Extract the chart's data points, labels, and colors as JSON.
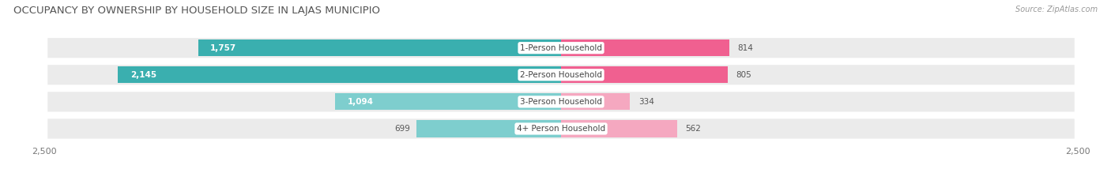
{
  "title": "OCCUPANCY BY OWNERSHIP BY HOUSEHOLD SIZE IN LAJAS MUNICIPIO",
  "source": "Source: ZipAtlas.com",
  "categories": [
    "1-Person Household",
    "2-Person Household",
    "3-Person Household",
    "4+ Person Household"
  ],
  "owner_values": [
    1757,
    2145,
    1094,
    699
  ],
  "renter_values": [
    814,
    805,
    334,
    562
  ],
  "owner_color_dark": "#3AAFAF",
  "owner_color_light": "#7ECECE",
  "renter_color_dark": "#F06090",
  "renter_color_light": "#F5A8C0",
  "row_bg_color": "#EBEBEB",
  "background_color": "#FFFFFF",
  "separator_color": "#FFFFFF",
  "x_max": 2500,
  "title_fontsize": 9.5,
  "bar_label_fontsize": 7.5,
  "cat_label_fontsize": 7.5,
  "tick_fontsize": 8,
  "source_fontsize": 7,
  "legend_fontsize": 8
}
